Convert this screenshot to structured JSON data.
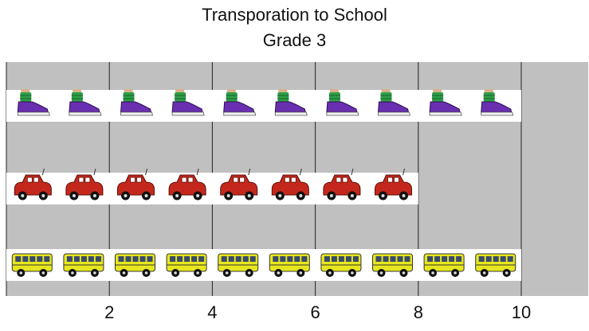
{
  "chart_data": {
    "type": "bar",
    "orientation": "horizontal",
    "style": "pictograph",
    "title": "Transporation to School",
    "subtitle": "Grade 3",
    "categories": [
      "walk",
      "car",
      "bus"
    ],
    "values": [
      10,
      8,
      10
    ],
    "icons": [
      "sneaker-icon",
      "car-icon",
      "school-bus-icon"
    ],
    "xlim": [
      0,
      11.3
    ],
    "xticks": [
      2,
      4,
      6,
      8,
      10
    ],
    "grid": true,
    "colors": {
      "plot_background": "#c0c0c0",
      "gridline": "#222222",
      "sneaker_sock": "#2e9e48",
      "sneaker_body": "#6a2fb0",
      "car_body": "#c4281c",
      "bus_body": "#e6e61e"
    }
  }
}
